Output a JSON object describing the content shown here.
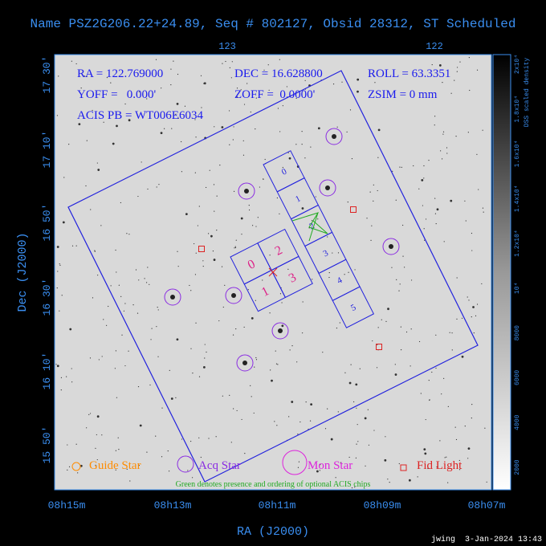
{
  "title": "Name PSZ2G206.22+24.89, Seq # 802127, Obsid 28312, ST Scheduled",
  "top_axis": {
    "ticks": [
      "123",
      "122"
    ]
  },
  "info": [
    "RA = 122.769000",
    "DEC = 16.628800",
    "ROLL = 63.3351",
    "YOFF =   0.000'",
    "ZOFF =  0.0000'",
    "ZSIM = 0 mm",
    "ACIS PB = WT006E6034"
  ],
  "y_axis": {
    "label": "Dec (J2000)",
    "ticks": [
      "17 30'",
      "17 10'",
      "16 50'",
      "16 30'",
      "16 10'",
      "15 50'"
    ]
  },
  "x_axis": {
    "label": "RA (J2000)",
    "ticks": [
      "08h15m",
      "08h13m",
      "08h11m",
      "08h09m",
      "08h07m"
    ]
  },
  "acis_s_chips": [
    "0",
    "1",
    "2",
    "3",
    "4",
    "5"
  ],
  "acis_i_chips": [
    "0",
    "2",
    "1",
    "3"
  ],
  "legend": [
    "Guide Star",
    "Acq Star",
    "Mon Star",
    "Fid Light"
  ],
  "note": "Green denotes presence and ordering of optional ACIS chips",
  "colorbar": {
    "label": "DSS scaled density",
    "ticks": [
      "2000",
      "4000",
      "6000",
      "8000",
      "10⁴",
      "1.2x10⁴",
      "1.4x10⁴",
      "1.6x10⁴",
      "1.8x10⁴",
      "2x10⁴"
    ]
  },
  "footer": "jwing  3-Jan-2024 13:43"
}
